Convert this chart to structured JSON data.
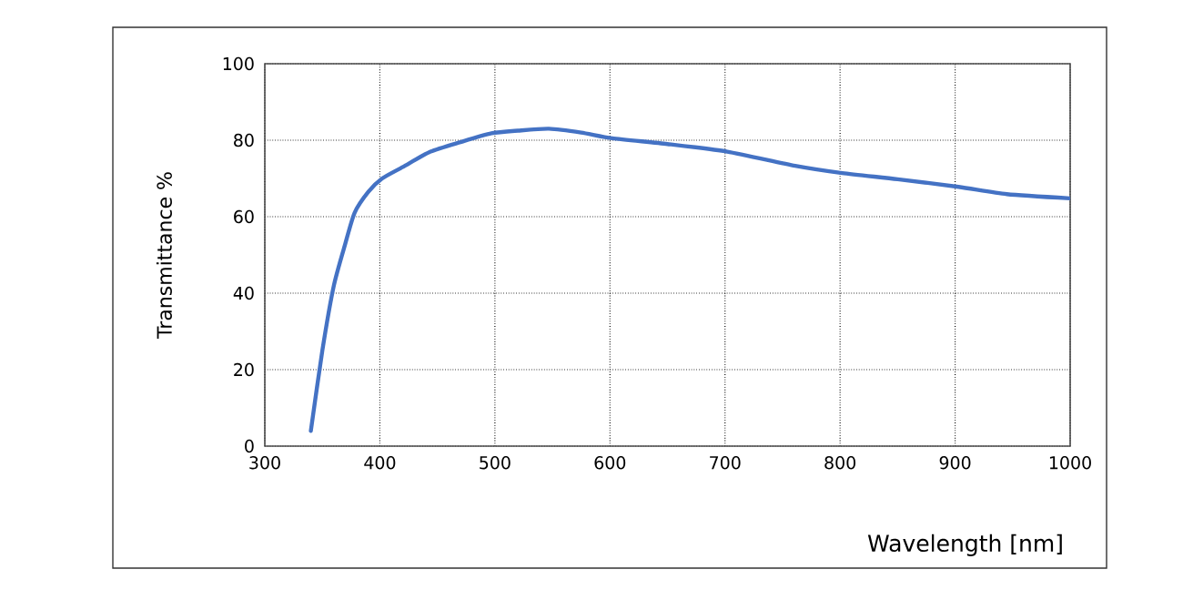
{
  "chart_data": {
    "type": "line",
    "xlabel": "Wavelength [nm]",
    "ylabel": "Transmittance %",
    "x": [
      340,
      350,
      360,
      370,
      378,
      390,
      402,
      420,
      444,
      470,
      497,
      520,
      547,
      575,
      602,
      650,
      702,
      761,
      802,
      850,
      903,
      945,
      1000
    ],
    "series": [
      {
        "color": "#4472c4",
        "values": [
          4,
          25,
          42,
          53,
          61,
          66.5,
          70,
          73,
          77,
          79.5,
          81.8,
          82.5,
          83,
          82,
          80.5,
          79,
          77,
          73.3,
          71.4,
          69.8,
          67.8,
          65.9,
          64.8
        ]
      }
    ],
    "xlim": [
      300,
      1000
    ],
    "ylim": [
      0,
      100
    ],
    "xticks": [
      300,
      400,
      500,
      600,
      700,
      800,
      900,
      1000
    ],
    "yticks": [
      0,
      20,
      40,
      60,
      80,
      100
    ],
    "grid": true,
    "line_style": "solid",
    "marker": "none"
  }
}
